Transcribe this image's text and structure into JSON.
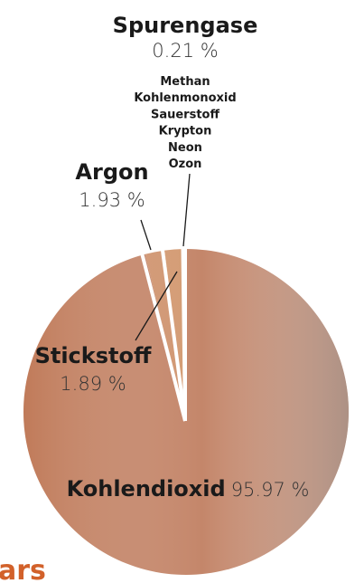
{
  "chart_data": {
    "type": "pie",
    "categories": [
      "Spurengase",
      "Stickstoff",
      "Argon",
      "Kohlendioxid"
    ],
    "values": [
      0.21,
      1.89,
      1.93,
      95.97
    ],
    "value_labels": [
      "0.21 %",
      "1.89 %",
      "1.93 %",
      "95.97 %"
    ],
    "colors": [
      "#d6a27e",
      "#d39a72",
      "#d09570",
      "#c4866a"
    ],
    "trace_gases": [
      "Methan",
      "Kohlenmonoxid",
      "Sauerstoff",
      "Krypton",
      "Neon",
      "Ozon"
    ],
    "footer_text": "ars"
  }
}
